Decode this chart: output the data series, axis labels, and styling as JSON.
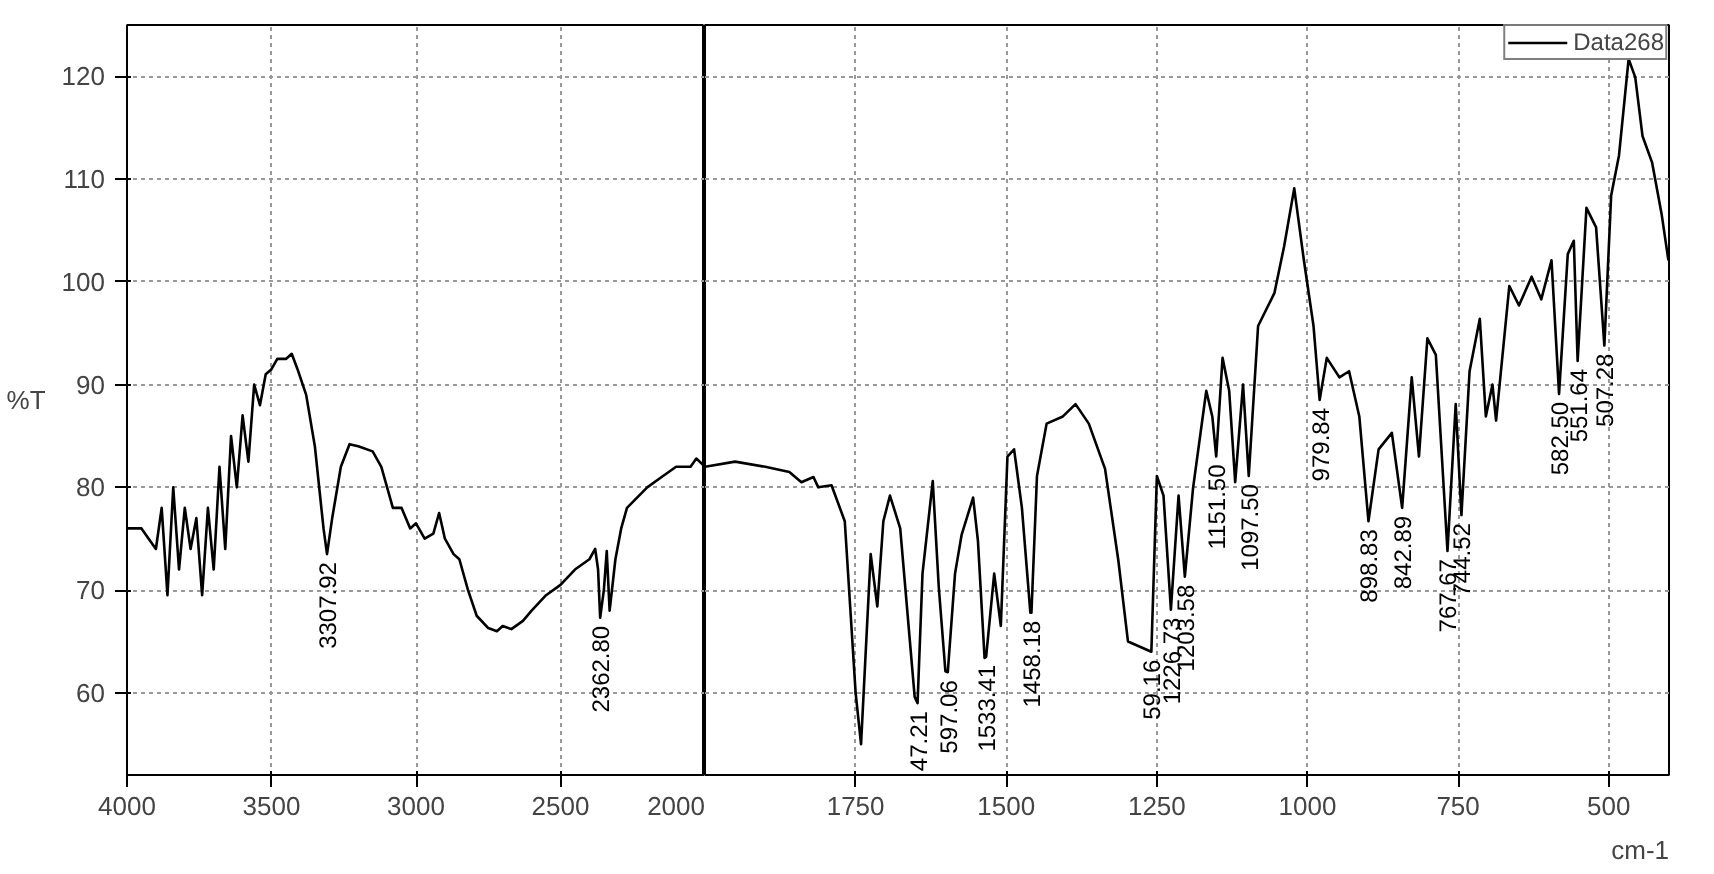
{
  "chart_data": [
    {
      "type": "line",
      "ylabel": "%T",
      "xlim": [
        4000,
        2000
      ],
      "xticks": [
        4000,
        3500,
        3000,
        2500,
        2000
      ],
      "ylim": [
        52,
        125
      ],
      "yticks": [
        60,
        70,
        80,
        90,
        100,
        110,
        120
      ],
      "grid": true,
      "series": [
        {
          "color": "#000000",
          "x": [
            4000,
            3950,
            3900,
            3880,
            3860,
            3840,
            3820,
            3800,
            3780,
            3760,
            3740,
            3720,
            3700,
            3680,
            3660,
            3640,
            3620,
            3600,
            3580,
            3560,
            3540,
            3520,
            3500,
            3480,
            3450,
            3430,
            3410,
            3380,
            3350,
            3320,
            3307.92,
            3290,
            3260,
            3230,
            3200,
            3150,
            3120,
            3100,
            3080,
            3050,
            3020,
            3000,
            2970,
            2940,
            2920,
            2900,
            2870,
            2850,
            2820,
            2790,
            2750,
            2720,
            2700,
            2670,
            2630,
            2600,
            2550,
            2500,
            2450,
            2400,
            2380,
            2370,
            2362.8,
            2350,
            2340,
            2330,
            2310,
            2290,
            2270,
            2200,
            2150,
            2100,
            2050,
            2030,
            2000
          ],
          "values": [
            76,
            76,
            74,
            78,
            69.5,
            80,
            72,
            78,
            74,
            77,
            69.5,
            78,
            72,
            82,
            74,
            85,
            80,
            87,
            82.5,
            90,
            88,
            91,
            91.5,
            92.5,
            92.5,
            93,
            91.5,
            89,
            84,
            76,
            73.5,
            77,
            82,
            84.2,
            84,
            83.5,
            82,
            80,
            78,
            78,
            76,
            76.5,
            75,
            75.5,
            77.5,
            75,
            73.5,
            73,
            70,
            67.5,
            66.3,
            66,
            66.5,
            66.2,
            67,
            68,
            69.5,
            70.5,
            72,
            73,
            74,
            72,
            67.3,
            70,
            73.8,
            68,
            73,
            76,
            78,
            80,
            81,
            82,
            82,
            82.8,
            82
          ]
        }
      ],
      "annotations": [
        {
          "text": "3307.92",
          "x": 3307.92,
          "y": 73.5
        },
        {
          "text": "2362.80",
          "x": 2362.8,
          "y": 67.3
        }
      ]
    },
    {
      "type": "line",
      "xlabel": "cm-1",
      "xlim": [
        2000,
        400
      ],
      "xticks": [
        1750,
        1500,
        1250,
        1000,
        750,
        500
      ],
      "ylim": [
        52,
        125
      ],
      "yticks": [
        60,
        70,
        80,
        90,
        100,
        110,
        120
      ],
      "grid": true,
      "tick_labels": "x",
      "legend": "top right",
      "series": [
        {
          "name": "Data268",
          "color": "#000000",
          "x": [
            2000,
            1950,
            1900,
            1860,
            1840,
            1820,
            1812,
            1790,
            1768,
            1750,
            1741,
            1725,
            1714,
            1704,
            1693,
            1676,
            1652,
            1647.21,
            1639,
            1622,
            1612,
            1601,
            1597.06,
            1585,
            1574,
            1555,
            1547,
            1536,
            1533.41,
            1520,
            1509,
            1498,
            1487,
            1474,
            1460,
            1458.18,
            1449,
            1433,
            1406,
            1385,
            1363,
            1336,
            1314,
            1298,
            1259.16,
            1250,
            1239,
            1226.73,
            1214,
            1203.58,
            1190,
            1168,
            1158,
            1151.5,
            1141,
            1130,
            1120,
            1107,
            1097.5,
            1082,
            1055,
            1039,
            1022,
            1006,
            990,
            979.84,
            968,
            947,
            931,
            914,
            898.83,
            882,
            860,
            842.89,
            827,
            815,
            801,
            787,
            767.67,
            754,
            744.52,
            731,
            714,
            704,
            693,
            687,
            665,
            649,
            628,
            612,
            595,
            582.5,
            568,
            558,
            551.64,
            537,
            521,
            507.28,
            496,
            483,
            467,
            456,
            444,
            428,
            412,
            401
          ],
          "values": [
            82,
            82.5,
            82,
            81.5,
            80.5,
            81,
            80,
            80.2,
            76.7,
            60,
            55,
            73.5,
            68.4,
            76.7,
            79.2,
            76,
            59.6,
            59,
            71.6,
            80.6,
            70.3,
            62.1,
            62,
            71.6,
            75.4,
            79,
            74.8,
            63.4,
            63.5,
            71.6,
            66.5,
            83,
            83.7,
            78,
            67.8,
            67.8,
            81.1,
            86.2,
            86.9,
            88.1,
            86.2,
            81.8,
            72.9,
            65,
            64,
            81.1,
            79.2,
            68.1,
            79.2,
            71.3,
            79.9,
            89.4,
            86.9,
            83,
            92.6,
            89.4,
            80.5,
            90,
            81.1,
            95.7,
            98.9,
            103.4,
            109.1,
            102.1,
            95.7,
            88.5,
            92.6,
            90.7,
            91.3,
            86.9,
            76.7,
            83.7,
            85.3,
            78,
            90.7,
            83,
            94.5,
            92.9,
            73.8,
            88.1,
            77.3,
            91.3,
            96.4,
            86.9,
            90,
            86.5,
            99.6,
            97.7,
            100.5,
            98.3,
            102.1,
            89.1,
            102.7,
            104,
            92.3,
            107.2,
            105.3,
            93.8,
            108.4,
            112.3,
            121.7,
            119.9,
            114.2,
            111.6,
            106.5,
            102.1
          ]
        }
      ],
      "annotations": [
        {
          "text": "47.21",
          "x": 1647.21,
          "y": 59
        },
        {
          "text": "597.06",
          "x": 1597.06,
          "y": 62
        },
        {
          "text": "1533.41",
          "x": 1533.41,
          "y": 63.5
        },
        {
          "text": "1458.18",
          "x": 1458.18,
          "y": 67.8
        },
        {
          "text": "59.16",
          "x": 1259.16,
          "y": 64
        },
        {
          "text": "1226.73",
          "x": 1226.73,
          "y": 68.1
        },
        {
          "text": "1203.58",
          "x": 1203.58,
          "y": 71.3
        },
        {
          "text": "1151.50",
          "x": 1151.5,
          "y": 83
        },
        {
          "text": "1097.50",
          "x": 1097.5,
          "y": 81.1
        },
        {
          "text": "979.84",
          "x": 979.84,
          "y": 88.5
        },
        {
          "text": "898.83",
          "x": 898.83,
          "y": 76.7
        },
        {
          "text": "842.89",
          "x": 842.89,
          "y": 78
        },
        {
          "text": "767.67",
          "x": 767.67,
          "y": 73.8
        },
        {
          "text": "744.52",
          "x": 744.52,
          "y": 77.3
        },
        {
          "text": "582.50",
          "x": 582.5,
          "y": 89.1
        },
        {
          "text": "551.64",
          "x": 551.64,
          "y": 92.3
        },
        {
          "text": "507.28",
          "x": 507.28,
          "y": 93.8
        }
      ]
    }
  ]
}
